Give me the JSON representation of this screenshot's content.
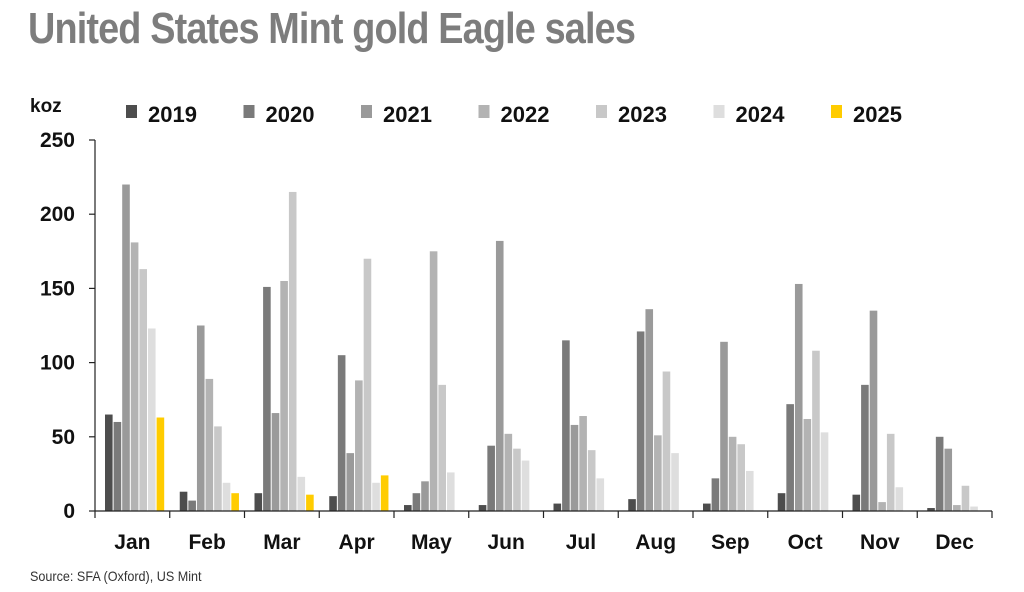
{
  "title": "United States Mint gold Eagle sales",
  "source": "Source: SFA (Oxford), US Mint",
  "colors": {
    "2019": "#4d4d4d",
    "2020": "#7a7a7a",
    "2021": "#9a9a9a",
    "2022": "#b3b3b3",
    "2023": "#c8c8c8",
    "2024": "#dedede",
    "2025": "#ffcc00"
  },
  "chart_data": {
    "type": "bar",
    "ylabel": "koz",
    "ylim": [
      0,
      250
    ],
    "yticks": [
      0,
      50,
      100,
      150,
      200,
      250
    ],
    "grid": false,
    "legend_position": "top",
    "categories": [
      "Jan",
      "Feb",
      "Mar",
      "Apr",
      "May",
      "Jun",
      "Jul",
      "Aug",
      "Sep",
      "Oct",
      "Nov",
      "Dec"
    ],
    "series": [
      {
        "name": "2019",
        "values": [
          65,
          13,
          12,
          10,
          4,
          4,
          5,
          8,
          5,
          12,
          11,
          2
        ]
      },
      {
        "name": "2020",
        "values": [
          60,
          7,
          151,
          105,
          12,
          44,
          115,
          121,
          22,
          72,
          85,
          50
        ]
      },
      {
        "name": "2021",
        "values": [
          220,
          125,
          66,
          39,
          20,
          182,
          58,
          136,
          114,
          153,
          135,
          42
        ]
      },
      {
        "name": "2022",
        "values": [
          181,
          89,
          155,
          88,
          175,
          52,
          64,
          51,
          50,
          62,
          6,
          4
        ]
      },
      {
        "name": "2023",
        "values": [
          163,
          57,
          215,
          170,
          85,
          42,
          41,
          94,
          45,
          108,
          52,
          17
        ]
      },
      {
        "name": "2024",
        "values": [
          123,
          19,
          23,
          19,
          26,
          34,
          22,
          39,
          27,
          53,
          16,
          3
        ]
      },
      {
        "name": "2025",
        "values": [
          63,
          12,
          11,
          24,
          null,
          null,
          null,
          null,
          null,
          null,
          null,
          null
        ]
      }
    ]
  }
}
